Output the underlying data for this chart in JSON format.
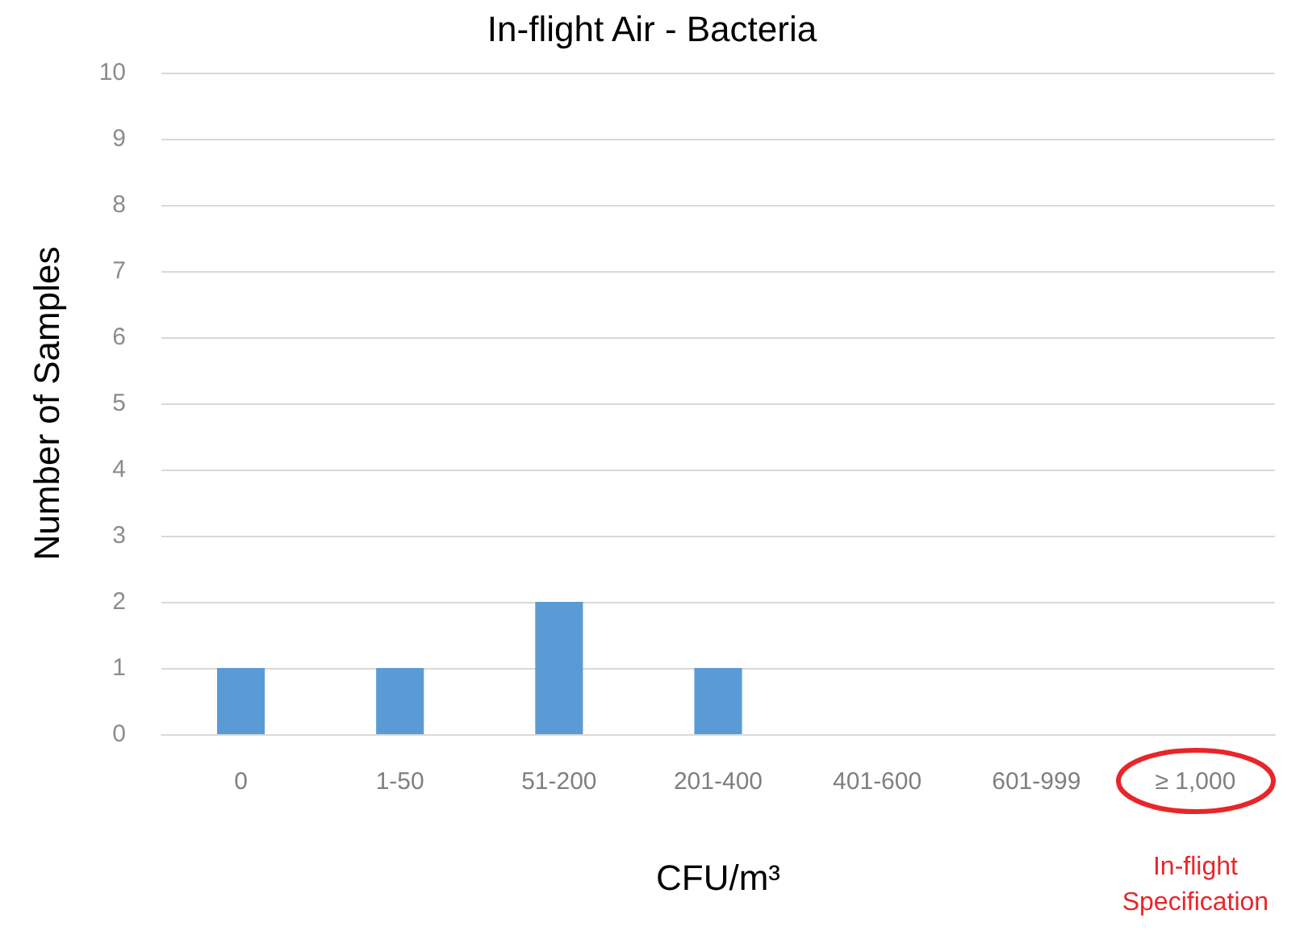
{
  "chart_data": {
    "type": "bar",
    "title": "In-flight Air - Bacteria",
    "xlabel": "CFU/m³",
    "ylabel": "Number of Samples",
    "categories": [
      "0",
      "1-50",
      "51-200",
      "201-400",
      "401-600",
      "601-999",
      "≥ 1,000"
    ],
    "values": [
      1,
      1,
      2,
      1,
      0,
      0,
      0
    ],
    "color": "#5b9bd5",
    "ylim": [
      0,
      10
    ],
    "yticks": [
      0,
      1,
      2,
      3,
      4,
      5,
      6,
      7,
      8,
      9,
      10
    ],
    "grid": "y",
    "annotations": [
      "In-flight Specification"
    ]
  }
}
